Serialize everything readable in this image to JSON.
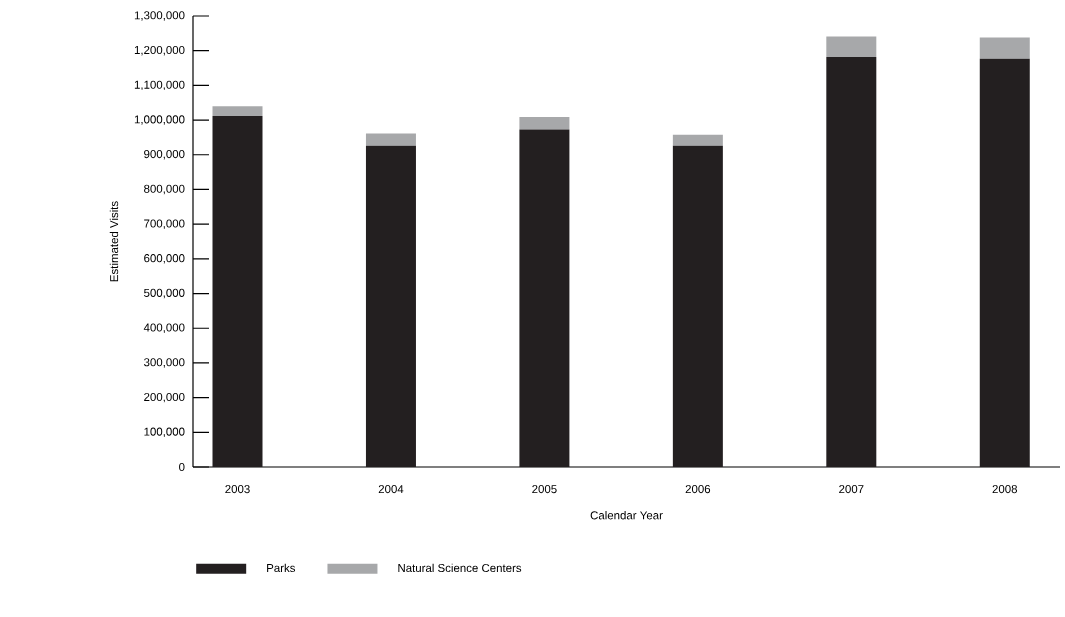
{
  "chart_data": {
    "type": "bar",
    "stacked": true,
    "xlabel": "Calendar Year",
    "ylabel": "Estimated Visits",
    "categories": [
      "2003",
      "2004",
      "2005",
      "2006",
      "2007",
      "2008"
    ],
    "series": [
      {
        "name": "Parks",
        "color": "#231f20",
        "values": [
          1012000,
          926000,
          973000,
          926000,
          1182000,
          1177000
        ]
      },
      {
        "name": "Natural Science Centers",
        "color": "#a7a8aa",
        "values": [
          28000,
          35000,
          36000,
          32000,
          59000,
          61000
        ]
      }
    ],
    "ylim": [
      0,
      1300000
    ],
    "yticks": [
      0,
      {
        "value": 100000,
        "label": "100,000"
      },
      {
        "value": 200000,
        "label": "200,000"
      },
      {
        "value": 300000,
        "label": "300,000"
      },
      {
        "value": 400000,
        "label": "400,000"
      },
      {
        "value": 500000,
        "label": "500,000"
      },
      {
        "value": 600000,
        "label": "600,000"
      },
      {
        "value": 700000,
        "label": "700,000"
      },
      {
        "value": 800000,
        "label": "800,000"
      },
      {
        "value": 900000,
        "label": "900,000"
      },
      {
        "value": 1000000,
        "label": "1,000,000"
      },
      {
        "value": 1100000,
        "label": "1,100,000"
      },
      {
        "value": 1200000,
        "label": "1,200,000"
      },
      {
        "value": 1300000,
        "label": "1,300,000"
      }
    ],
    "legend": "bottom"
  }
}
